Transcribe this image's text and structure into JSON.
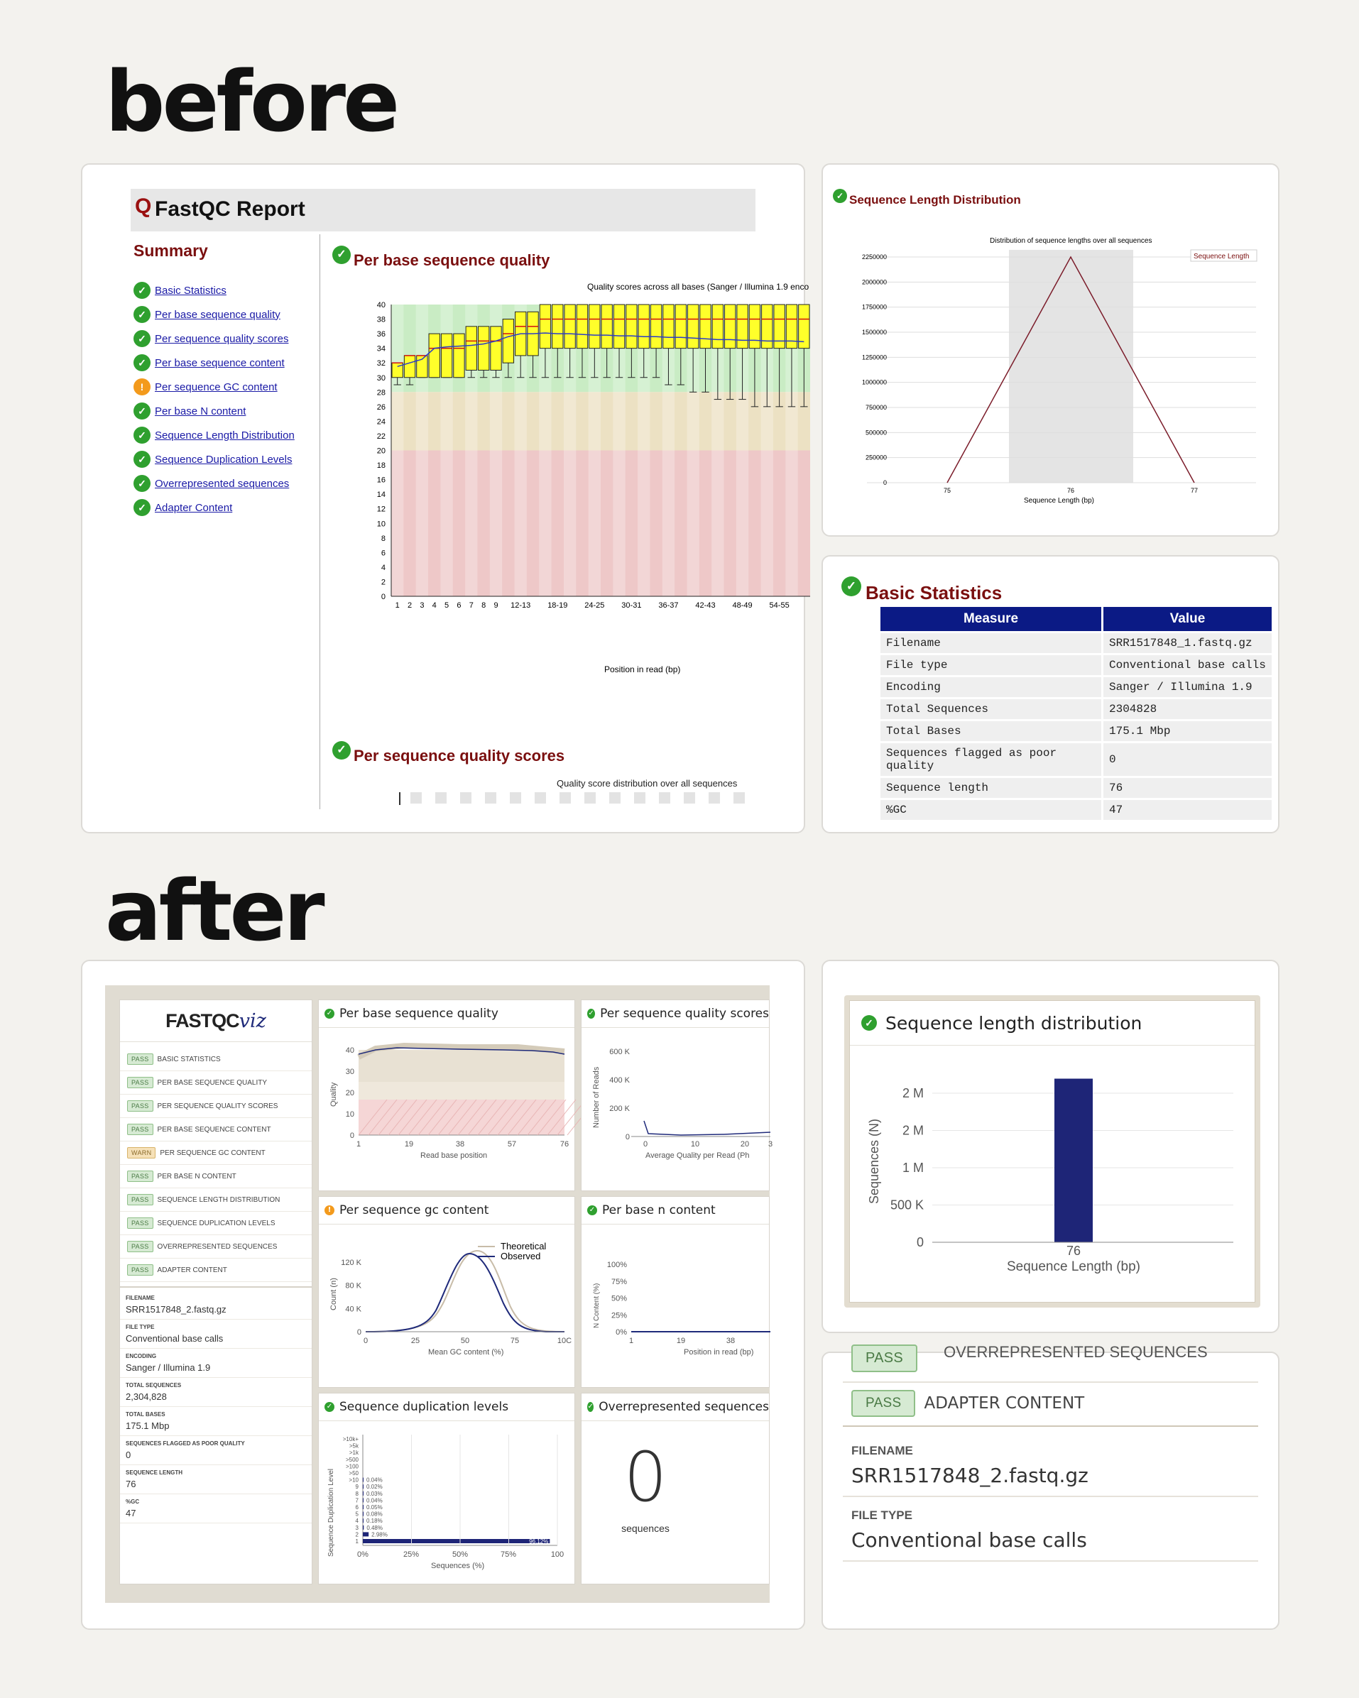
{
  "headings": {
    "before": "before",
    "after": "after"
  },
  "old_report": {
    "title": "FastQC Report",
    "summary_title": "Summary",
    "summary_items": [
      {
        "label": "Basic Statistics",
        "status": "pass"
      },
      {
        "label": "Per base sequence quality",
        "status": "pass"
      },
      {
        "label": "Per sequence quality scores",
        "status": "pass"
      },
      {
        "label": "Per base sequence content",
        "status": "pass"
      },
      {
        "label": "Per sequence GC content",
        "status": "warn"
      },
      {
        "label": "Per base N content",
        "status": "pass"
      },
      {
        "label": "Sequence Length Distribution",
        "status": "pass"
      },
      {
        "label": "Sequence Duplication Levels",
        "status": "pass"
      },
      {
        "label": "Overrepresented sequences",
        "status": "pass"
      },
      {
        "label": "Adapter Content",
        "status": "pass"
      }
    ],
    "pbsq_title": "Per base sequence quality",
    "pbsq_chart_title": "Quality scores across all bases (Sanger / Illumina 1.9 enco",
    "pbsq_xlabel": "Position in read (bp)",
    "pbsq_yticks": [
      "0",
      "2",
      "4",
      "6",
      "8",
      "10",
      "12",
      "14",
      "16",
      "18",
      "20",
      "22",
      "24",
      "26",
      "28",
      "30",
      "32",
      "34",
      "36",
      "38",
      "40"
    ],
    "pbsq_xticks": [
      "1",
      "2",
      "3",
      "4",
      "5",
      "6",
      "7",
      "8",
      "9",
      "12-13",
      "18-19",
      "24-25",
      "30-31",
      "36-37",
      "42-43",
      "48-49",
      "54-55"
    ],
    "psqs_title": "Per sequence quality scores",
    "psqs_chart_title": "Quality score distribution over all sequences"
  },
  "old_length": {
    "title": "Sequence Length Distribution",
    "chart_title": "Distribution of sequence lengths over all sequences",
    "legend": "Sequence Length",
    "xlabel": "Sequence Length (bp)",
    "yticks": [
      "0",
      "250000",
      "500000",
      "750000",
      "1000000",
      "1250000",
      "1500000",
      "1750000",
      "2000000",
      "2250000"
    ],
    "xticks": [
      "75",
      "76",
      "77"
    ]
  },
  "old_basic": {
    "title": "Basic Statistics",
    "headers": [
      "Measure",
      "Value"
    ],
    "rows": [
      [
        "Filename",
        "SRR1517848_1.fastq.gz"
      ],
      [
        "File type",
        "Conventional base calls"
      ],
      [
        "Encoding",
        "Sanger / Illumina 1.9"
      ],
      [
        "Total Sequences",
        "2304828"
      ],
      [
        "Total Bases",
        "175.1 Mbp"
      ],
      [
        "Sequences flagged as poor quality",
        "0"
      ],
      [
        "Sequence length",
        "76"
      ],
      [
        "%GC",
        "47"
      ]
    ]
  },
  "viz": {
    "logo_main": "FASTQC",
    "logo_accent": "viz",
    "modules": [
      {
        "badge": "PASS",
        "label": "BASIC STATISTICS",
        "status": "pass"
      },
      {
        "badge": "PASS",
        "label": "PER BASE SEQUENCE QUALITY",
        "status": "pass"
      },
      {
        "badge": "PASS",
        "label": "PER SEQUENCE QUALITY SCORES",
        "status": "pass"
      },
      {
        "badge": "PASS",
        "label": "PER BASE SEQUENCE CONTENT",
        "status": "pass"
      },
      {
        "badge": "WARN",
        "label": "PER SEQUENCE GC CONTENT",
        "status": "warn"
      },
      {
        "badge": "PASS",
        "label": "PER BASE N CONTENT",
        "status": "pass"
      },
      {
        "badge": "PASS",
        "label": "SEQUENCE LENGTH DISTRIBUTION",
        "status": "pass"
      },
      {
        "badge": "PASS",
        "label": "SEQUENCE DUPLICATION LEVELS",
        "status": "pass"
      },
      {
        "badge": "PASS",
        "label": "OVERREPRESENTED SEQUENCES",
        "status": "pass"
      },
      {
        "badge": "PASS",
        "label": "ADAPTER CONTENT",
        "status": "pass"
      }
    ],
    "stats": [
      {
        "k": "FILENAME",
        "v": "SRR1517848_2.fastq.gz"
      },
      {
        "k": "FILE TYPE",
        "v": "Conventional base calls"
      },
      {
        "k": "ENCODING",
        "v": "Sanger / Illumina 1.9"
      },
      {
        "k": "TOTAL SEQUENCES",
        "v": "2,304,828"
      },
      {
        "k": "TOTAL BASES",
        "v": "175.1 Mbp"
      },
      {
        "k": "SEQUENCES FLAGGED AS POOR QUALITY",
        "v": "0"
      },
      {
        "k": "SEQUENCE LENGTH",
        "v": "76"
      },
      {
        "k": "%GC",
        "v": "47"
      }
    ],
    "panels": {
      "pbsq": {
        "title": "Per base sequence quality",
        "ylabel": "Quality",
        "xlabel": "Read base position",
        "yticks": [
          "0",
          "10",
          "20",
          "30",
          "40"
        ],
        "xticks": [
          "1",
          "19",
          "38",
          "57",
          "76"
        ]
      },
      "psqs": {
        "title": "Per sequence quality scores",
        "ylabel": "Number of Reads",
        "xlabel": "Average Quality per Read (Ph",
        "yticks": [
          "0",
          "200 K",
          "400 K",
          "600 K"
        ],
        "xticks": [
          "0",
          "10",
          "20",
          "3"
        ]
      },
      "gc": {
        "title": "Per sequence gc content",
        "ylabel": "Count (n)",
        "xlabel": "Mean GC content (%)",
        "yticks": [
          "0",
          "40 K",
          "80 K",
          "120 K"
        ],
        "xticks": [
          "0",
          "25",
          "50",
          "75",
          "10C"
        ],
        "legend": [
          "Theoretical",
          "Observed"
        ]
      },
      "nc": {
        "title": "Per base n content",
        "ylabel": "N Content (%)",
        "xlabel": "Position in read (bp)",
        "yticks": [
          "0%",
          "25%",
          "50%",
          "75%",
          "100%"
        ],
        "xticks": [
          "1",
          "19",
          "38"
        ]
      },
      "dup": {
        "title": "Sequence duplication levels",
        "ylabel": "Sequence Duplication Level",
        "xlabel": "Sequences (%)",
        "levels": [
          ">10k+",
          ">5k",
          ">1k",
          ">500",
          ">100",
          ">50",
          ">10",
          "9",
          "8",
          "7",
          "6",
          "5",
          "4",
          "3",
          "2",
          "1"
        ],
        "pct": [
          "0.04%",
          "0.02%",
          "0.03%",
          "0.04%",
          "0.05%",
          "0.08%",
          "0.18%",
          "0.48%",
          "2.98%",
          "96.12%"
        ],
        "xticks": [
          "0%",
          "25%",
          "50%",
          "75%",
          "100"
        ]
      },
      "over": {
        "title": "Overrepresented sequences",
        "count": "0",
        "unit": "sequences"
      }
    }
  },
  "zoom_length": {
    "title": "Sequence length distribution",
    "ylabel": "Sequences (N)",
    "xlabel": "Sequence Length (bp)",
    "yticks": [
      "0",
      "500 K",
      "1 M",
      "2 M",
      "2 M"
    ],
    "xtick": "76"
  },
  "zoom_bottom": {
    "cut_label": "OVERREPRESENTED SEQUENCES",
    "badge": "PASS",
    "label": "ADAPTER CONTENT",
    "stats": [
      {
        "k": "FILENAME",
        "v": "SRR1517848_2.fastq.gz"
      },
      {
        "k": "FILE TYPE",
        "v": "Conventional base calls"
      }
    ]
  },
  "chart_data": [
    {
      "type": "line",
      "title": "Sequence Length Distribution",
      "x": [
        75,
        76,
        77
      ],
      "y": [
        0,
        2304828,
        0
      ],
      "xlabel": "Sequence Length (bp)",
      "ylim": [
        0,
        2250000
      ]
    },
    {
      "type": "bar",
      "title": "Sequence length distribution",
      "categories": [
        "76"
      ],
      "values": [
        2304828
      ],
      "xlabel": "Sequence Length (bp)",
      "ylabel": "Sequences (N)"
    },
    {
      "type": "bar",
      "title": "Sequence duplication levels",
      "categories": [
        "1",
        "2",
        "3",
        "4",
        "5",
        "6",
        "7",
        "8",
        "9",
        ">10"
      ],
      "values": [
        96.12,
        2.98,
        0.48,
        0.18,
        0.08,
        0.05,
        0.04,
        0.03,
        0.02,
        0.04
      ],
      "xlabel": "Sequences (%)"
    },
    {
      "type": "line",
      "title": "Per sequence gc content",
      "series": [
        {
          "name": "Theoretical"
        },
        {
          "name": "Observed"
        }
      ],
      "xlabel": "Mean GC content (%)",
      "ylabel": "Count (n)"
    }
  ]
}
